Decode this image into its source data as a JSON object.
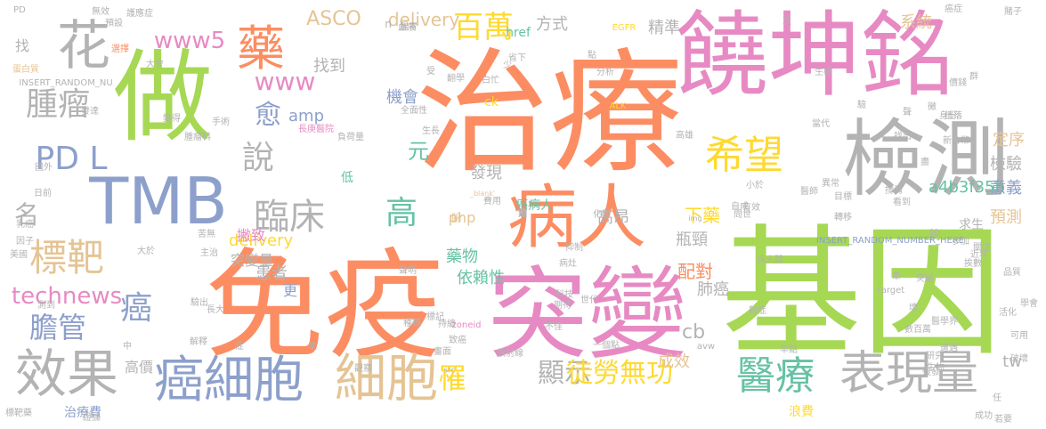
{
  "colors": {
    "orange": "#fc8d62",
    "green": "#a6d854",
    "pink": "#e78ac3",
    "gray": "#b3b3b3",
    "blue": "#8da0cb",
    "teal": "#66c2a5",
    "yellow": "#ffd92f",
    "tan": "#e5c494"
  },
  "words": [
    {
      "text": "治療",
      "color": "orange"
    },
    {
      "text": "基因",
      "color": "green"
    },
    {
      "text": "免疫",
      "color": "orange"
    },
    {
      "text": "突變",
      "color": "pink"
    },
    {
      "text": "饒坤銘",
      "color": "pink"
    },
    {
      "text": "檢測",
      "color": "gray"
    },
    {
      "text": "做",
      "color": "green"
    },
    {
      "text": "TMB",
      "color": "blue"
    },
    {
      "text": "病人",
      "color": "orange"
    },
    {
      "text": "花",
      "color": "gray"
    },
    {
      "text": "藥",
      "color": "orange"
    },
    {
      "text": "細胞",
      "color": "tan"
    },
    {
      "text": "癌細胞",
      "color": "blue"
    },
    {
      "text": "效果",
      "color": "gray"
    },
    {
      "text": "表現量",
      "color": "gray"
    },
    {
      "text": "醫療",
      "color": "teal"
    },
    {
      "text": "希望",
      "color": "yellow"
    },
    {
      "text": "標靶",
      "color": "tan"
    },
    {
      "text": "臨床",
      "color": "gray"
    },
    {
      "text": "腫瘤",
      "color": "gray"
    },
    {
      "text": "百萬",
      "color": "yellow"
    },
    {
      "text": "高",
      "color": "teal"
    },
    {
      "text": "PD L",
      "color": "blue"
    },
    {
      "text": "膽管",
      "color": "blue"
    },
    {
      "text": "癌",
      "color": "blue"
    },
    {
      "text": "說",
      "color": "gray"
    },
    {
      "text": "顯示",
      "color": "gray"
    },
    {
      "text": "罹",
      "color": "yellow"
    },
    {
      "text": "徒勞無功",
      "color": "yellow"
    },
    {
      "text": "www5",
      "color": "pink"
    },
    {
      "text": "www",
      "color": "pink"
    },
    {
      "text": "technews",
      "color": "pink"
    },
    {
      "text": "愈",
      "color": "blue"
    },
    {
      "text": "元",
      "color": "teal"
    },
    {
      "text": "ASCO",
      "color": "tan"
    },
    {
      "text": "delivery",
      "color": "tan"
    },
    {
      "text": "delivery",
      "color": "yellow"
    },
    {
      "text": "方式",
      "color": "gray"
    },
    {
      "text": "精準",
      "color": "gray"
    },
    {
      "text": "系統",
      "color": "tan"
    },
    {
      "text": "名",
      "color": "gray"
    },
    {
      "text": "amp",
      "color": "blue"
    },
    {
      "text": "找到",
      "color": "gray"
    },
    {
      "text": "機會",
      "color": "blue"
    },
    {
      "text": "發現",
      "color": "gray"
    },
    {
      "text": "藥物",
      "color": "teal"
    },
    {
      "text": "依賴性",
      "color": "teal"
    },
    {
      "text": "php",
      "color": "tan"
    },
    {
      "text": "cb",
      "color": "gray"
    },
    {
      "text": "下藥",
      "color": "yellow"
    },
    {
      "text": "高昂",
      "color": "gray"
    },
    {
      "text": "瓶頸",
      "color": "gray"
    },
    {
      "text": "配對",
      "color": "orange"
    },
    {
      "text": "患者",
      "color": "gray"
    },
    {
      "text": "肺癌",
      "color": "gray"
    },
    {
      "text": "成效",
      "color": "tan"
    },
    {
      "text": "a4b3f35b",
      "color": "teal"
    },
    {
      "text": "定序",
      "color": "tan"
    },
    {
      "text": "檢驗",
      "color": "gray"
    },
    {
      "text": "意義",
      "color": "blue"
    },
    {
      "text": "預測",
      "color": "tan"
    },
    {
      "text": "tw",
      "color": "gray"
    },
    {
      "text": "高價",
      "color": "gray"
    },
    {
      "text": "治療費",
      "color": "blue"
    },
    {
      "text": "浪費",
      "color": "yellow"
    },
    {
      "text": "更",
      "color": "blue"
    },
    {
      "text": "撇致",
      "color": "pink"
    },
    {
      "text": "突變量",
      "color": "gray"
    },
    {
      "text": "ck",
      "color": "yellow"
    },
    {
      "text": "href",
      "color": "teal"
    },
    {
      "text": "癌病人",
      "color": "teal"
    },
    {
      "text": "求生",
      "color": "gray"
    },
    {
      "text": "夠",
      "color": "gray"
    },
    {
      "text": "低",
      "color": "teal"
    },
    {
      "text": "找",
      "color": "gray"
    },
    {
      "text": "n",
      "color": "gray"
    },
    {
      "text": "盼",
      "color": "tan"
    },
    {
      "text": "INSERT_RANDOM_NUMBER_HERE",
      "color": "blue"
    },
    {
      "text": "INSERT_RANDOM_NU",
      "color": "gray"
    },
    {
      "text": "EGFR",
      "color": "yellow"
    },
    {
      "text": "ALK",
      "color": "yellow"
    },
    {
      "text": "_blank'",
      "color": "tan"
    },
    {
      "text": "img",
      "color": "gray"
    },
    {
      "text": "target",
      "color": "gray"
    },
    {
      "text": "avw",
      "color": "gray"
    },
    {
      "text": "src",
      "color": "gray"
    },
    {
      "text": "zoneid",
      "color": "pink"
    },
    {
      "text": "PD",
      "color": "gray"
    },
    {
      "text": "蛋白質",
      "color": "tan"
    },
    {
      "text": "選擇",
      "color": "orange"
    },
    {
      "text": "大會",
      "color": "gray"
    },
    {
      "text": "無效",
      "color": "gray"
    },
    {
      "text": "護應症",
      "color": "gray"
    },
    {
      "text": "腸胃",
      "color": "gray"
    },
    {
      "text": "分析",
      "color": "gray"
    },
    {
      "text": "全面性",
      "color": "gray"
    },
    {
      "text": "長庚醫院",
      "color": "pink"
    },
    {
      "text": "一個點",
      "color": "gray"
    },
    {
      "text": "畫面",
      "color": "gray"
    },
    {
      "text": "放射線",
      "color": "gray"
    },
    {
      "text": "標記",
      "color": "gray"
    },
    {
      "text": "病灶",
      "color": "gray"
    },
    {
      "text": "抑制",
      "color": "gray"
    },
    {
      "text": "化學",
      "color": "gray"
    },
    {
      "text": "費用",
      "color": "gray"
    },
    {
      "text": "轉移",
      "color": "gray"
    },
    {
      "text": "病人體",
      "color": "gray"
    },
    {
      "text": "腫瘤科",
      "color": "gray"
    },
    {
      "text": "發達",
      "color": "gray"
    },
    {
      "text": "國外",
      "color": "gray"
    },
    {
      "text": "日前",
      "color": "gray"
    },
    {
      "text": "乳癌",
      "color": "gray"
    },
    {
      "text": "因子",
      "color": "gray"
    },
    {
      "text": "美國",
      "color": "gray"
    },
    {
      "text": "測到",
      "color": "gray"
    },
    {
      "text": "標靶藥",
      "color": "gray"
    },
    {
      "text": "證據",
      "color": "gray"
    },
    {
      "text": "聲明",
      "color": "gray"
    },
    {
      "text": "科技",
      "color": "gray"
    },
    {
      "text": "期待",
      "color": "gray"
    },
    {
      "text": "世代",
      "color": "gray"
    },
    {
      "text": "品質",
      "color": "gray"
    },
    {
      "text": "破壞",
      "color": "gray"
    },
    {
      "text": "可用",
      "color": "gray"
    },
    {
      "text": "成功",
      "color": "gray"
    },
    {
      "text": "若要",
      "color": "gray"
    },
    {
      "text": "賭子",
      "color": "gray"
    },
    {
      "text": "癌症",
      "color": "gray"
    },
    {
      "text": "身份",
      "color": "gray"
    },
    {
      "text": "突破",
      "color": "gray"
    },
    {
      "text": "醫學界",
      "color": "gray"
    },
    {
      "text": "早點",
      "color": "gray"
    },
    {
      "text": "研究",
      "color": "gray"
    },
    {
      "text": "遭遇",
      "color": "gray"
    },
    {
      "text": "復發",
      "color": "gray"
    },
    {
      "text": "找出",
      "color": "gray"
    },
    {
      "text": "新台幣",
      "color": "gray"
    },
    {
      "text": "異常",
      "color": "gray"
    },
    {
      "text": "目標",
      "color": "gray"
    },
    {
      "text": "關注",
      "color": "gray"
    },
    {
      "text": "近年",
      "color": "gray"
    },
    {
      "text": "學會",
      "color": "gray"
    },
    {
      "text": "價錢",
      "color": "gray"
    },
    {
      "text": "生機",
      "color": "gray"
    },
    {
      "text": "當代",
      "color": "gray"
    },
    {
      "text": "高雄",
      "color": "gray"
    },
    {
      "text": "負荷量",
      "color": "gray"
    },
    {
      "text": "生長",
      "color": "gray"
    },
    {
      "text": "血液",
      "color": "gray"
    },
    {
      "text": "預設",
      "color": "gray"
    },
    {
      "text": "手術",
      "color": "gray"
    },
    {
      "text": "苦無",
      "color": "gray"
    },
    {
      "text": "大於",
      "color": "gray"
    },
    {
      "text": "主治",
      "color": "gray"
    },
    {
      "text": "驗出",
      "color": "gray"
    },
    {
      "text": "長大",
      "color": "gray"
    },
    {
      "text": "解釋",
      "color": "gray"
    },
    {
      "text": "觀察",
      "color": "gray"
    },
    {
      "text": "持續",
      "color": "gray"
    },
    {
      "text": "致癌",
      "color": "gray"
    },
    {
      "text": "種類",
      "color": "gray"
    },
    {
      "text": "不佳",
      "color": "gray"
    },
    {
      "text": "白忙",
      "color": "gray"
    },
    {
      "text": "省下",
      "color": "gray"
    },
    {
      "text": "變得",
      "color": "gray"
    },
    {
      "text": "翻學",
      "color": "gray"
    },
    {
      "text": "受",
      "color": "gray"
    },
    {
      "text": "少",
      "color": "gray"
    },
    {
      "text": "點",
      "color": "gray"
    },
    {
      "text": "驗",
      "color": "gray"
    },
    {
      "text": "次",
      "color": "gray"
    },
    {
      "text": "群",
      "color": "gray"
    },
    {
      "text": "牽",
      "color": "gray"
    },
    {
      "text": "任",
      "color": "gray"
    },
    {
      "text": "中",
      "color": "gray"
    },
    {
      "text": "症",
      "color": "gray"
    },
    {
      "text": "走",
      "color": "gray"
    },
    {
      "text": "黴",
      "color": "gray"
    },
    {
      "text": "盡",
      "color": "gray"
    },
    {
      "text": "聲",
      "color": "gray"
    },
    {
      "text": "低落",
      "color": "gray"
    },
    {
      "text": "對症",
      "color": "gray"
    },
    {
      "text": "活化",
      "color": "gray"
    },
    {
      "text": "撐弱",
      "color": "gray"
    },
    {
      "text": "問世",
      "color": "gray"
    },
    {
      "text": "醫師",
      "color": "gray"
    },
    {
      "text": "小於",
      "color": "gray"
    },
    {
      "text": "自成",
      "color": "gray"
    },
    {
      "text": "參加",
      "color": "gray"
    },
    {
      "text": "壞",
      "color": "gray"
    },
    {
      "text": "數百萬",
      "color": "gray"
    },
    {
      "text": "生物",
      "color": "gray"
    },
    {
      "text": "挨數",
      "color": "gray"
    },
    {
      "text": "看到",
      "color": "gray"
    },
    {
      "text": "有效",
      "color": "gray"
    },
    {
      "text": "病",
      "color": "gray"
    },
    {
      "text": "遇",
      "color": "gray"
    },
    {
      "text": "兆",
      "color": "gray"
    },
    {
      "text": "類",
      "color": "gray"
    }
  ]
}
